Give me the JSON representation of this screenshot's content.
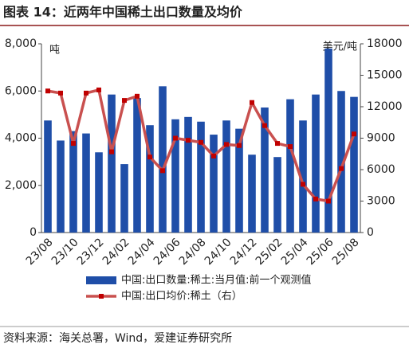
{
  "chart_data": {
    "type": "bar_line",
    "title": "图表 14：近两年中国稀土出口数量及均价",
    "y_unit": "吨",
    "y2_unit": "美元/吨",
    "source": "资料来源：海关总署，Wind，爱建证券研究所",
    "categories": [
      "23/08",
      null,
      "23/10",
      null,
      "23/12",
      null,
      "24/02",
      null,
      "24/04",
      null,
      "24/06",
      null,
      "24/08",
      null,
      "24/10",
      null,
      "24/12",
      null,
      "25/02",
      null,
      "25/04",
      null,
      "25/06",
      null,
      "25/08"
    ],
    "series": [
      {
        "name": "中国:出口数量:稀土:当月值:前一个观测值",
        "color": "#1f4ea8",
        "type": "bar",
        "values": [
          4750,
          3900,
          4300,
          4200,
          3400,
          5850,
          2900,
          5700,
          4550,
          6200,
          4800,
          4900,
          4700,
          4150,
          4750,
          4400,
          3300,
          5300,
          3200,
          5650,
          4750,
          5850,
          7800,
          6000,
          5750
        ]
      },
      {
        "name": "中国:出口均价:稀土（右）",
        "color": "#c9504f",
        "type": "line",
        "axis": "y2",
        "values": [
          13500,
          13300,
          8500,
          13300,
          13600,
          7700,
          12600,
          13000,
          7200,
          5900,
          9000,
          8800,
          8600,
          7300,
          8400,
          8300,
          12400,
          10200,
          8500,
          8200,
          4600,
          3200,
          3000,
          6100,
          9400
        ]
      }
    ],
    "ylim": [
      0,
      8000
    ],
    "yticks": [
      0,
      {
        "value": 2000,
        "label": "2,000"
      },
      {
        "value": 4000,
        "label": "4,000"
      },
      {
        "value": 6000,
        "label": "6,000"
      },
      {
        "value": 8000,
        "label": "8,000"
      }
    ],
    "y2lim": [
      0,
      18000
    ],
    "y2ticks": [
      0,
      3000,
      6000,
      9000,
      12000,
      15000,
      18000
    ]
  }
}
